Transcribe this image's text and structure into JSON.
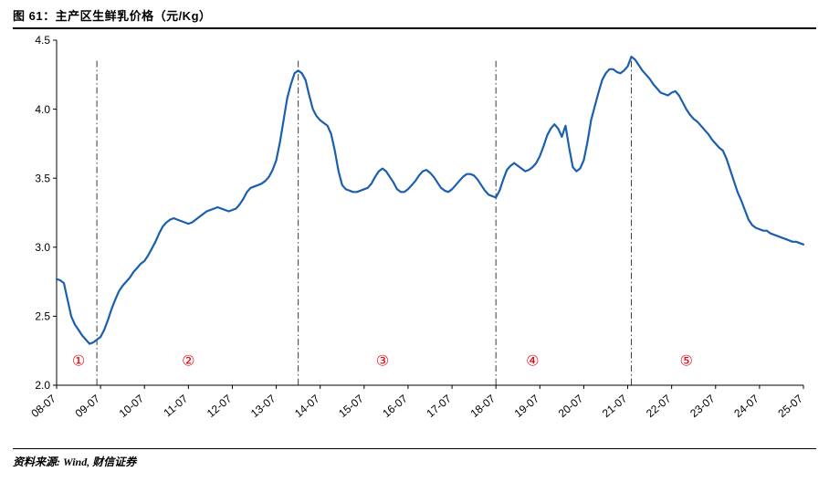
{
  "figure": {
    "title": "图 61：主产区生鲜乳价格（元/Kg）",
    "source": "资料来源: Wind, 财信证券"
  },
  "colors": {
    "line": "#1b5fae",
    "accent_red": "#e8000d",
    "axis": "#000000",
    "divider": "#3a3a3a"
  },
  "chart_data": {
    "type": "line",
    "title": "主产区生鲜乳价格（元/Kg）",
    "xlabel": "",
    "ylabel": "",
    "ylim": [
      2.0,
      4.5
    ],
    "yticks": [
      2.0,
      2.5,
      3.0,
      3.5,
      4.0,
      4.5
    ],
    "grid": false,
    "legend": "none",
    "x_start_month": "2008-07",
    "x_freq": "monthly",
    "xtick_labels": [
      "08-07",
      "09-07",
      "10-07",
      "11-07",
      "12-07",
      "13-07",
      "14-07",
      "15-07",
      "16-07",
      "17-07",
      "18-07",
      "19-07",
      "20-07",
      "21-07",
      "22-07",
      "23-07",
      "24-07",
      "25-07"
    ],
    "xtick_month_step": 12,
    "series": [
      {
        "name": "主产区生鲜乳价格",
        "unit": "元/Kg",
        "values": [
          2.77,
          2.76,
          2.74,
          2.62,
          2.5,
          2.44,
          2.4,
          2.36,
          2.33,
          2.3,
          2.31,
          2.33,
          2.35,
          2.4,
          2.47,
          2.55,
          2.62,
          2.68,
          2.72,
          2.75,
          2.78,
          2.82,
          2.85,
          2.88,
          2.9,
          2.94,
          2.99,
          3.04,
          3.1,
          3.15,
          3.18,
          3.2,
          3.21,
          3.2,
          3.19,
          3.18,
          3.17,
          3.18,
          3.2,
          3.22,
          3.24,
          3.26,
          3.27,
          3.28,
          3.29,
          3.28,
          3.27,
          3.26,
          3.27,
          3.28,
          3.31,
          3.35,
          3.4,
          3.43,
          3.44,
          3.45,
          3.46,
          3.48,
          3.51,
          3.56,
          3.63,
          3.76,
          3.92,
          4.08,
          4.18,
          4.26,
          4.28,
          4.26,
          4.21,
          4.1,
          4.0,
          3.95,
          3.92,
          3.9,
          3.88,
          3.82,
          3.7,
          3.55,
          3.45,
          3.42,
          3.41,
          3.4,
          3.4,
          3.41,
          3.42,
          3.43,
          3.46,
          3.51,
          3.55,
          3.57,
          3.55,
          3.51,
          3.47,
          3.42,
          3.4,
          3.4,
          3.42,
          3.45,
          3.48,
          3.52,
          3.55,
          3.56,
          3.54,
          3.51,
          3.47,
          3.43,
          3.41,
          3.4,
          3.42,
          3.45,
          3.48,
          3.51,
          3.53,
          3.53,
          3.52,
          3.49,
          3.45,
          3.41,
          3.38,
          3.37,
          3.36,
          3.41,
          3.49,
          3.56,
          3.59,
          3.61,
          3.59,
          3.57,
          3.55,
          3.56,
          3.58,
          3.61,
          3.66,
          3.73,
          3.81,
          3.86,
          3.89,
          3.86,
          3.8,
          3.88,
          3.72,
          3.58,
          3.55,
          3.57,
          3.63,
          3.76,
          3.92,
          4.02,
          4.12,
          4.21,
          4.26,
          4.29,
          4.29,
          4.27,
          4.26,
          4.28,
          4.31,
          4.38,
          4.36,
          4.32,
          4.28,
          4.25,
          4.22,
          4.18,
          4.15,
          4.12,
          4.11,
          4.1,
          4.12,
          4.13,
          4.1,
          4.05,
          4.0,
          3.96,
          3.93,
          3.91,
          3.88,
          3.85,
          3.82,
          3.78,
          3.75,
          3.72,
          3.7,
          3.64,
          3.56,
          3.48,
          3.4,
          3.34,
          3.27,
          3.2,
          3.16,
          3.14,
          3.13,
          3.12,
          3.12,
          3.1,
          3.09,
          3.08,
          3.07,
          3.06,
          3.05,
          3.04,
          3.04,
          3.03,
          3.02
        ]
      }
    ],
    "dividers": [
      {
        "month_index": 11,
        "approx_date": "2009-06"
      },
      {
        "month_index": 66,
        "approx_date": "2014-01"
      },
      {
        "month_index": 120,
        "approx_date": "2018-07"
      },
      {
        "month_index": 157,
        "approx_date": "2021-08"
      }
    ],
    "divider_top_value": 4.35,
    "phases": [
      {
        "label": "①",
        "month_index": 6
      },
      {
        "label": "②",
        "month_index": 36
      },
      {
        "label": "③",
        "month_index": 89
      },
      {
        "label": "④",
        "month_index": 130
      },
      {
        "label": "⑤",
        "month_index": 172
      }
    ],
    "phase_y_value": 2.18
  }
}
